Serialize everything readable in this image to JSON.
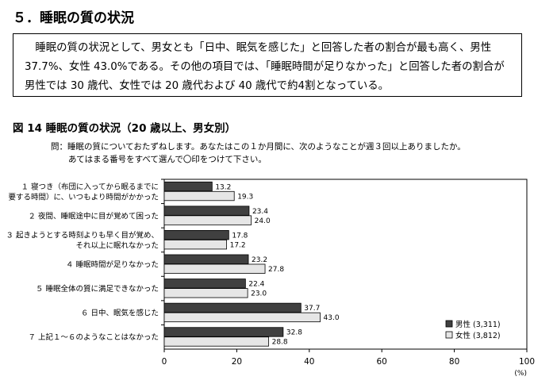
{
  "section": {
    "title": "５．睡眠の質の状況"
  },
  "summary": {
    "text": "睡眠の質の状況として、男女とも「日中、眠気を感じた」と回答した者の割合が最も高く、男性 37.7%、女性 43.0%である。その他の項目では、「睡眠時間が足りなかった」と回答した者の割合が男性では 30 歳代、女性では 20 歳代および 40 歳代で約4割となっている。"
  },
  "figure": {
    "title": "図 14  睡眠の質の状況（20 歳以上、男女別）",
    "question_line1": "問：睡眠の質についておたずねします。あなたはこの１か月間に、次のようなことが週３回以上ありましたか。",
    "question_line2": "あてはまる番号をすべて選んで〇印をつけて下さい。"
  },
  "chart_data": {
    "type": "bar",
    "orientation": "horizontal",
    "categories": [
      [
        "１ 寝つき（布団に入ってから眠るまでに",
        "要する時間）に、いつもより時間がかかった"
      ],
      [
        "２ 夜間、睡眠途中に目が覚めて困った"
      ],
      [
        "３ 起きようとする時刻よりも早く目が覚め、",
        "それ以上に眠れなかった"
      ],
      [
        "４ 睡眠時間が足りなかった"
      ],
      [
        "５ 睡眠全体の質に満足できなかった"
      ],
      [
        "６ 日中、眠気を感じた"
      ],
      [
        "７ 上記１～６のようなことはなかった"
      ]
    ],
    "series": [
      {
        "name": "男性 (3,311)",
        "color": "#404040",
        "values": [
          13.2,
          23.4,
          17.8,
          23.2,
          22.4,
          37.7,
          32.8
        ]
      },
      {
        "name": "女性 (3,812)",
        "color": "#e6e6e6",
        "values": [
          19.3,
          24.0,
          17.2,
          27.8,
          23.0,
          43.0,
          28.8
        ]
      }
    ],
    "xlim": [
      0,
      100
    ],
    "xticks": [
      0,
      20,
      40,
      60,
      80,
      100
    ],
    "xunit": "(%)",
    "legend_position": "bottom-right",
    "grid": false
  }
}
